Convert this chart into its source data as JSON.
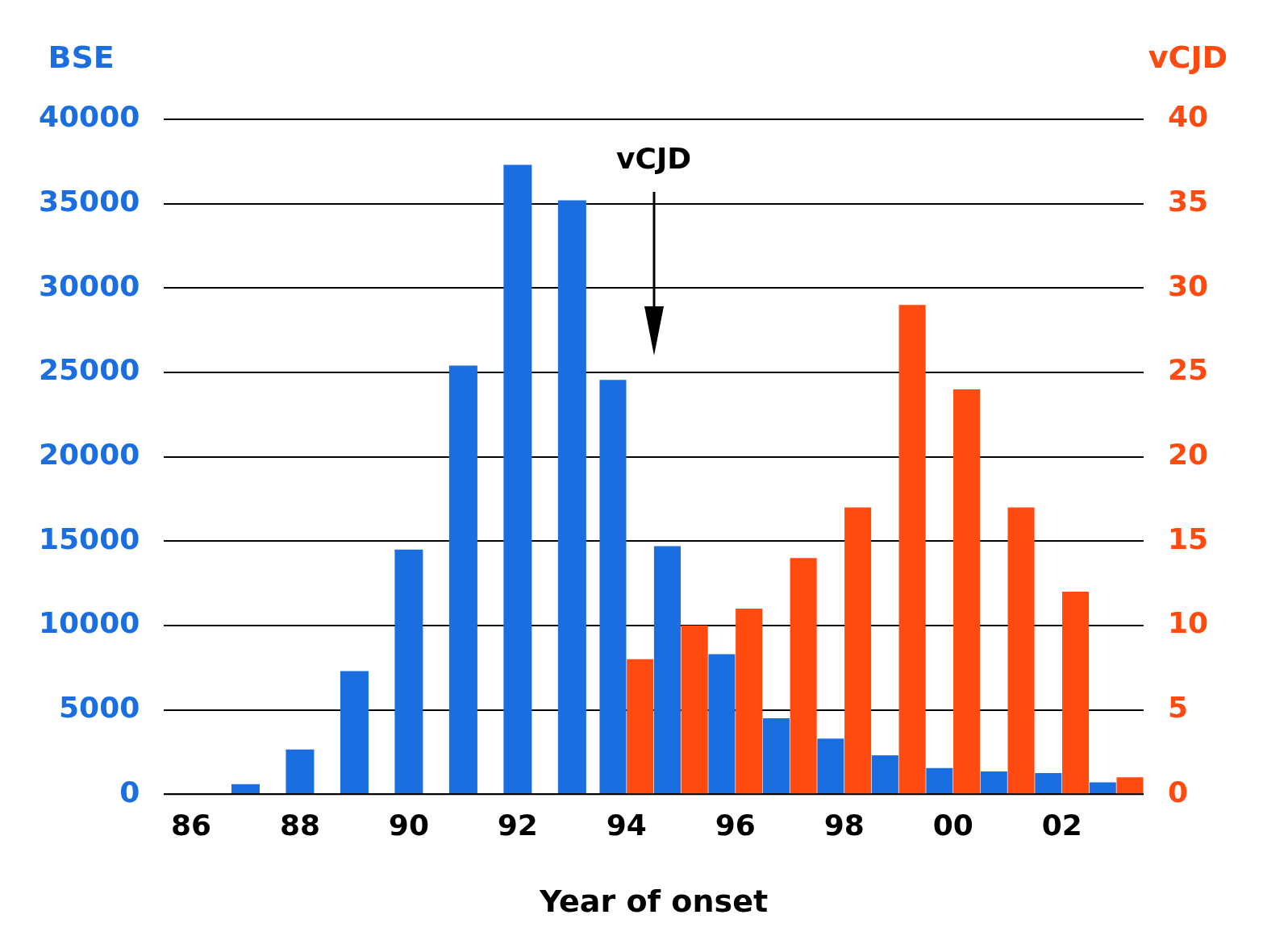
{
  "chart_data": {
    "type": "bar",
    "xlabel": "Year of onset",
    "ylabel": "BSE",
    "y2label": "vCJD",
    "categories": [
      "86",
      null,
      "88",
      null,
      "90",
      null,
      "92",
      null,
      "94",
      null,
      "96",
      null,
      "98",
      null,
      "00",
      null,
      "02",
      null
    ],
    "series": [
      {
        "color": "#1a6ee0",
        "values": [
          0,
          600,
          2650,
          7300,
          14500,
          25400,
          37300,
          35200,
          24550,
          14700,
          8300,
          4500,
          3300,
          2300,
          1550,
          1350,
          1250,
          700
        ]
      },
      {
        "color": "#ff4a10",
        "axis": "y2",
        "values": [
          null,
          null,
          null,
          null,
          null,
          null,
          null,
          null,
          8,
          10,
          11,
          14,
          17,
          29,
          24,
          17,
          12,
          1
        ]
      }
    ],
    "ylim": [
      0,
      40000
    ],
    "yticks": [
      0,
      5000,
      10000,
      15000,
      20000,
      25000,
      30000,
      35000,
      40000
    ],
    "y2lim": [
      0,
      40
    ],
    "y2ticks": [
      0,
      5,
      10,
      15,
      20,
      25,
      30,
      35,
      40
    ],
    "annotations": [
      "vCJD"
    ],
    "grid": "y",
    "legend": false
  }
}
